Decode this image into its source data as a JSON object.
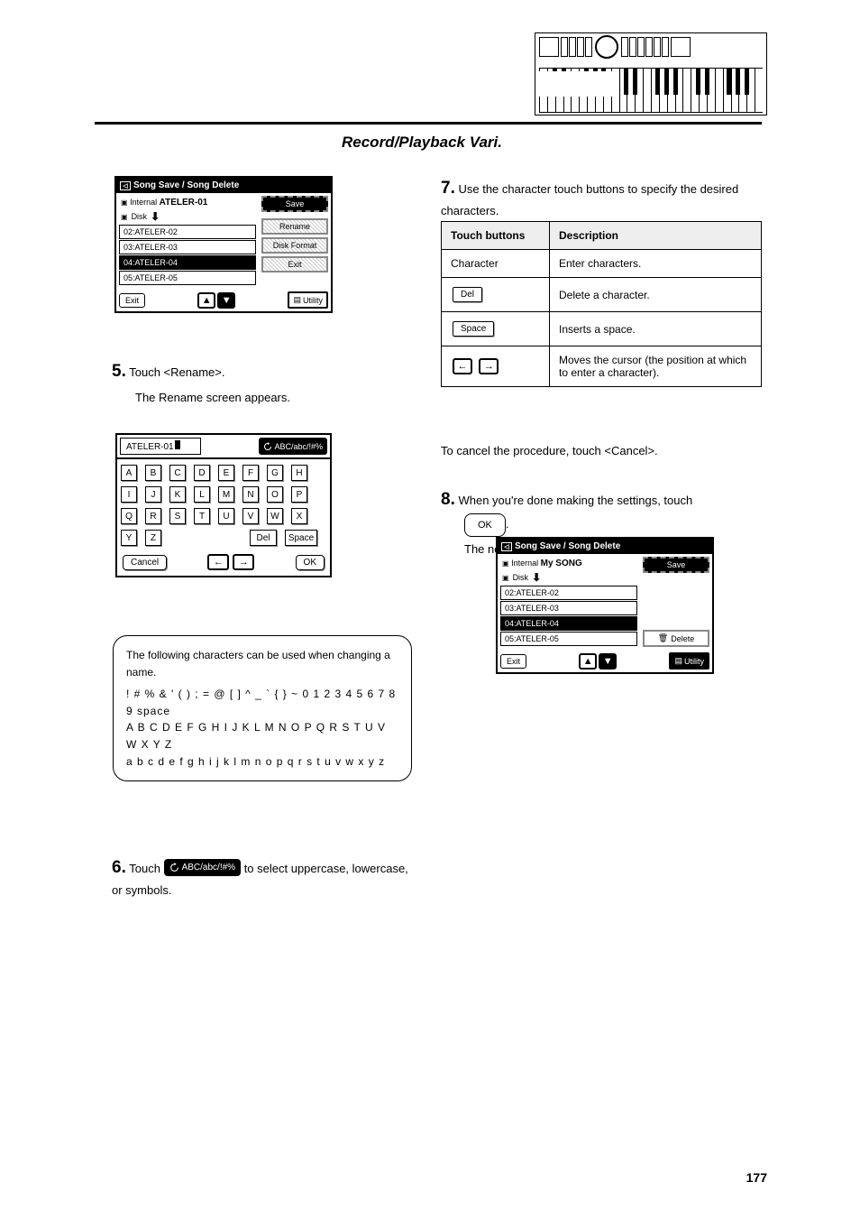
{
  "page_title": "Record/Playback Vari.",
  "page_number": "177",
  "header_line_color": "#000000",
  "keyboard_diagram": {
    "white_keys": 28,
    "black_key_positions_pct": [
      6,
      10,
      20,
      24,
      28,
      38,
      42,
      52,
      56,
      60,
      70,
      74,
      84,
      88,
      92
    ]
  },
  "screen1": {
    "title": "Song Save / Song Delete",
    "internal_label": "Internal",
    "internal_value": "ATELER-01",
    "disk_label": "Disk",
    "items": [
      "02:ATELER-02",
      "03:ATELER-03",
      "04:ATELER-04",
      "05:ATELER-05"
    ],
    "selected_index": 2,
    "save_btn": "Save",
    "rename_btn": "Rename",
    "format_btn": "Disk Format",
    "exit_btn": "Exit",
    "footer_exit": "Exit",
    "utility_btn": "Utility"
  },
  "step5": {
    "num": "5.",
    "text": "Touch <Rename>.",
    "text2": "The Rename screen appears."
  },
  "rename_screen": {
    "name_value": "ATELER-01",
    "switch_label": "ABC/abc/!#%",
    "keys": [
      "A",
      "B",
      "C",
      "D",
      "E",
      "F",
      "G",
      "H",
      "I",
      "J",
      "K",
      "L",
      "M",
      "N",
      "O",
      "P",
      "Q",
      "R",
      "S",
      "T",
      "U",
      "V",
      "W",
      "X",
      "Y",
      "Z"
    ],
    "del_key": "Del",
    "space_key": "Space",
    "cancel_btn": "Cancel",
    "ok_btn": "OK"
  },
  "info_box": {
    "line1": "The following characters can be used when changing a name.",
    "line2": "! # % & ' ( ) ; = @ [ ] ^ _ ` { } ~ 0 1 2 3 4 5 6 7 8 9 space",
    "line3": "A B C D E F G H I J K L M N O P Q R S T U V W X Y Z",
    "line4": "a b c d e f g h i j k l m n o p q r s t u v w x y z"
  },
  "step6": {
    "num": "6.",
    "intro": "Touch",
    "text": "to select uppercase, lowercase, or symbols."
  },
  "step7": {
    "num": "7.",
    "text": "Use the character touch buttons to specify the desired characters."
  },
  "touch_table": {
    "h1": "Touch buttons",
    "h2": "Description",
    "rows": [
      {
        "btn": "text",
        "cells": [
          "Character",
          "Enter characters."
        ]
      },
      {
        "btn": "del",
        "cells": [
          "Del",
          "Delete a character."
        ]
      },
      {
        "btn": "space",
        "cells": [
          "Space",
          "Inserts a space."
        ]
      },
      {
        "btn": "arrows",
        "cells": [
          "",
          "Moves the cursor (the position at which to enter a character)."
        ]
      }
    ]
  },
  "cancel_note": "To cancel the procedure, touch <Cancel>.",
  "step8": {
    "num": "8.",
    "text": "When you're done making the settings, touch",
    "text2": ".",
    "text3": "The new name is now inserted."
  },
  "ok_label": "OK",
  "screen2": {
    "title": "Song Save / Song Delete",
    "internal_label": "Internal",
    "internal_value": "My SONG",
    "disk_label": "Disk",
    "items": [
      "02:ATELER-02",
      "03:ATELER-03",
      "04:ATELER-04",
      "05:ATELER-05"
    ],
    "selected_index": 2,
    "save_btn": "Save",
    "delete_btn": "Delete",
    "footer_exit": "Exit",
    "utility_btn": "Utility"
  }
}
